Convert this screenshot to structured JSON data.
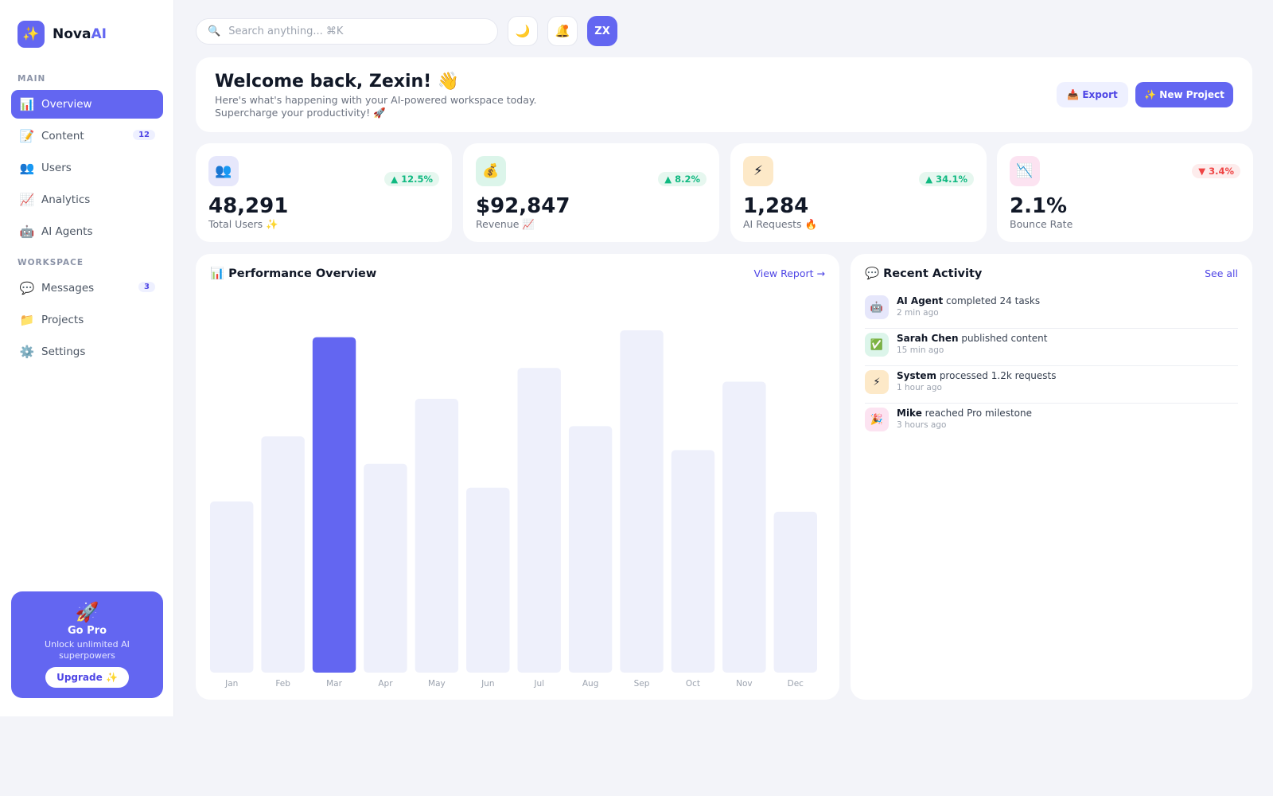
{
  "brand": {
    "logo_icon": "✨",
    "name_main": "Nova",
    "name_accent": "AI",
    "accent_color": "#6366f1"
  },
  "sidebar": {
    "main_label": "MAIN",
    "workspace_label": "WORKSPACE",
    "main_items": [
      {
        "icon": "📊",
        "icon_name": "bar-chart-icon",
        "label": "Overview",
        "active": true
      },
      {
        "icon": "📝",
        "icon_name": "memo-icon",
        "label": "Content",
        "badge": "12"
      },
      {
        "icon": "👥",
        "icon_name": "users-icon",
        "label": "Users"
      },
      {
        "icon": "📈",
        "icon_name": "trend-up-icon",
        "label": "Analytics"
      },
      {
        "icon": "🤖",
        "icon_name": "robot-icon",
        "label": "AI Agents"
      }
    ],
    "workspace_items": [
      {
        "icon": "💬",
        "icon_name": "speech-bubble-icon",
        "label": "Messages",
        "badge": "3"
      },
      {
        "icon": "📁",
        "icon_name": "folder-icon",
        "label": "Projects"
      },
      {
        "icon": "⚙️",
        "icon_name": "gear-icon",
        "label": "Settings"
      }
    ],
    "promo": {
      "icon": "🚀",
      "title": "Go Pro",
      "description": "Unlock unlimited AI superpowers",
      "button": "Upgrade ✨"
    }
  },
  "topbar": {
    "search_icon": "🔍",
    "search_placeholder": "Search anything... ⌘K",
    "theme_icon": "🌙",
    "notification_icon": "🔔",
    "avatar_initials": "ZX"
  },
  "welcome": {
    "title": "Welcome back, Zexin! 👋",
    "subtitle": "Here's what's happening with your AI-powered workspace today. Supercharge your productivity! 🚀",
    "export_button": "📥 Export",
    "new_project_button": "✨ New Project"
  },
  "stats": [
    {
      "icon": "👥",
      "icon_name": "users-icon",
      "icon_bg": "#e6e7fb",
      "change": "▲ 12.5%",
      "direction": "up",
      "value": "48,291",
      "label": "Total Users ✨"
    },
    {
      "icon": "💰",
      "icon_name": "money-bag-icon",
      "icon_bg": "#dcf5ea",
      "change": "▲ 8.2%",
      "direction": "up",
      "value": "$92,847",
      "label": "Revenue 📈"
    },
    {
      "icon": "⚡",
      "icon_name": "lightning-icon",
      "icon_bg": "#fde9c8",
      "change": "▲ 34.1%",
      "direction": "up",
      "value": "1,284",
      "label": "AI Requests 🔥"
    },
    {
      "icon": "📉",
      "icon_name": "trend-down-icon",
      "icon_bg": "#fce3f1",
      "change": "▼ 3.4%",
      "direction": "down",
      "value": "2.1%",
      "label": "Bounce Rate"
    }
  ],
  "performance": {
    "title": "📊 Performance Overview",
    "link": "View Report →"
  },
  "chart_data": {
    "type": "bar",
    "categories": [
      "Jan",
      "Feb",
      "Mar",
      "Apr",
      "May",
      "Jun",
      "Jul",
      "Aug",
      "Sep",
      "Oct",
      "Nov",
      "Dec"
    ],
    "values": [
      50,
      69,
      98,
      61,
      80,
      54,
      89,
      72,
      100,
      65,
      85,
      47
    ],
    "highlighted": "Mar",
    "ylim": [
      0,
      100
    ],
    "bar_color": "#eef0fb",
    "highlight_color": "#6366f1",
    "grid": false
  },
  "activity": {
    "title": "💬 Recent Activity",
    "link": "See all",
    "items": [
      {
        "icon": "🤖",
        "icon_name": "robot-icon",
        "icon_bg": "#e6e7fb",
        "actor": "AI Agent",
        "action": " completed 24 tasks",
        "time": "2 min ago"
      },
      {
        "icon": "✅",
        "icon_name": "check-icon",
        "icon_bg": "#dcf5ea",
        "actor": "Sarah Chen",
        "action": " published content",
        "time": "15 min ago"
      },
      {
        "icon": "⚡",
        "icon_name": "lightning-icon",
        "icon_bg": "#fde9c8",
        "actor": "System",
        "action": " processed 1.2k requests",
        "time": "1 hour ago"
      },
      {
        "icon": "🎉",
        "icon_name": "party-popper-icon",
        "icon_bg": "#fce3f1",
        "actor": "Mike",
        "action": " reached Pro milestone",
        "time": "3 hours ago"
      }
    ]
  }
}
